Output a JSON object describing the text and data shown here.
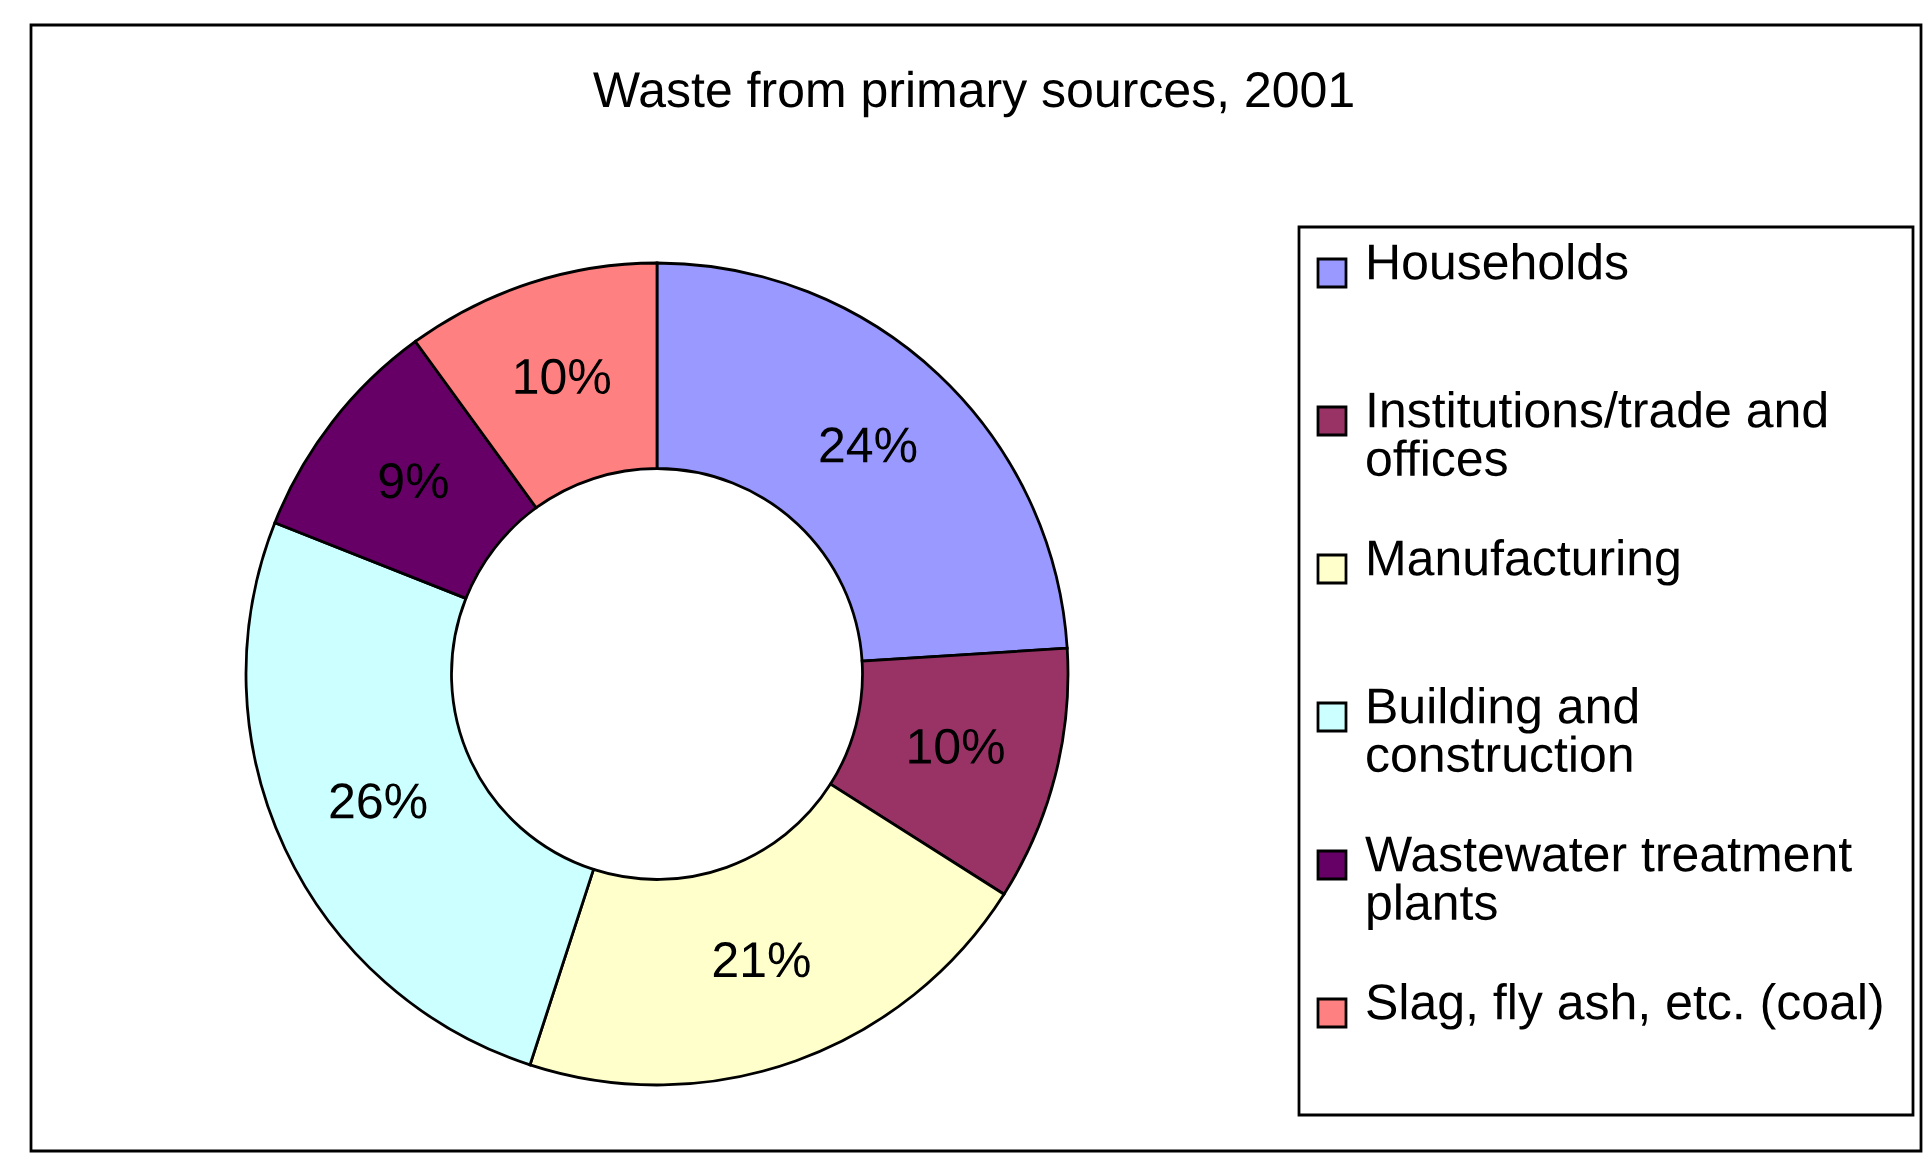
{
  "chart_data": {
    "type": "donut",
    "title": "Waste from primary sources, 2001",
    "categories": [
      "Households",
      "Institutions/trade and offices",
      "Manufacturing",
      "Building and construction",
      "Wastewater treatment plants",
      "Slag, fly ash, etc. (coal)"
    ],
    "values": [
      24,
      10,
      21,
      26,
      9,
      10
    ],
    "colors": [
      "#9999ff",
      "#993366",
      "#ffffcc",
      "#ccffff",
      "#660066",
      "#ff8080"
    ],
    "value_labels": [
      "24%",
      "10%",
      "21%",
      "26%",
      "9%",
      "10%"
    ],
    "legend": "right"
  }
}
